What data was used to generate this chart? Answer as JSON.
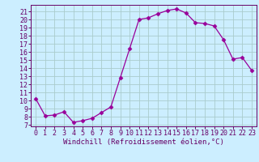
{
  "x": [
    0,
    1,
    2,
    3,
    4,
    5,
    6,
    7,
    8,
    9,
    10,
    11,
    12,
    13,
    14,
    15,
    16,
    17,
    18,
    19,
    20,
    21,
    22,
    23
  ],
  "y": [
    10.2,
    8.1,
    8.2,
    8.6,
    7.3,
    7.5,
    7.8,
    8.5,
    9.2,
    12.8,
    16.4,
    20.0,
    20.2,
    20.7,
    21.1,
    21.3,
    20.8,
    19.6,
    19.5,
    19.2,
    17.5,
    15.1,
    15.3,
    13.7
  ],
  "line_color": "#990099",
  "marker": "D",
  "marker_size": 2.5,
  "bg_color": "#cceeff",
  "grid_color": "#aacccc",
  "xlabel": "Windchill (Refroidissement éolien,°C)",
  "xlim": [
    -0.5,
    23.5
  ],
  "ylim": [
    6.8,
    21.8
  ],
  "yticks": [
    7,
    8,
    9,
    10,
    11,
    12,
    13,
    14,
    15,
    16,
    17,
    18,
    19,
    20,
    21
  ],
  "xticks": [
    0,
    1,
    2,
    3,
    4,
    5,
    6,
    7,
    8,
    9,
    10,
    11,
    12,
    13,
    14,
    15,
    16,
    17,
    18,
    19,
    20,
    21,
    22,
    23
  ],
  "tick_color": "#660066",
  "label_fontsize": 6.5,
  "tick_fontsize": 6.0,
  "spine_color": "#660066"
}
